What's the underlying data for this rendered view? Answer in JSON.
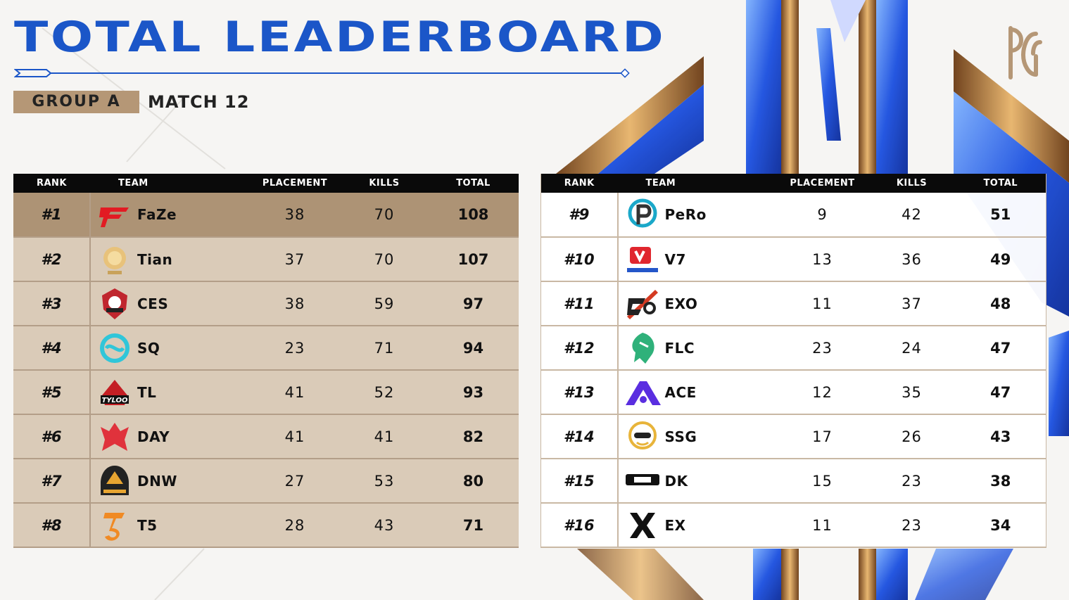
{
  "header": {
    "title": "TOTAL LEADERBOARD",
    "group": "GROUP A",
    "match": "MATCH 12"
  },
  "columns": {
    "rank": "RANK",
    "team": "TEAM",
    "placement": "PLACEMENT",
    "kills": "KILLS",
    "total": "TOTAL"
  },
  "colors": {
    "title_blue": "#1b56c8",
    "badge_tan": "#b59776",
    "row_tan": "#dacbb8",
    "first_row": "#ad9375",
    "header_black": "#0a0a0a"
  },
  "left_table": [
    {
      "rank": "#1",
      "team": "FaZe",
      "logo": "faze-logo-icon",
      "placement": "38",
      "kills": "70",
      "total": "108"
    },
    {
      "rank": "#2",
      "team": "Tian",
      "logo": "tian-logo-icon",
      "placement": "37",
      "kills": "70",
      "total": "107"
    },
    {
      "rank": "#3",
      "team": "CES",
      "logo": "ces-logo-icon",
      "placement": "38",
      "kills": "59",
      "total": "97"
    },
    {
      "rank": "#4",
      "team": "SQ",
      "logo": "sq-logo-icon",
      "placement": "23",
      "kills": "71",
      "total": "94"
    },
    {
      "rank": "#5",
      "team": "TL",
      "logo": "tl-logo-icon",
      "placement": "41",
      "kills": "52",
      "total": "93"
    },
    {
      "rank": "#6",
      "team": "DAY",
      "logo": "day-logo-icon",
      "placement": "41",
      "kills": "41",
      "total": "82"
    },
    {
      "rank": "#7",
      "team": "DNW",
      "logo": "dnw-logo-icon",
      "placement": "27",
      "kills": "53",
      "total": "80"
    },
    {
      "rank": "#8",
      "team": "T5",
      "logo": "t5-logo-icon",
      "placement": "28",
      "kills": "43",
      "total": "71"
    }
  ],
  "right_table": [
    {
      "rank": "#9",
      "team": "PeRo",
      "logo": "pero-logo-icon",
      "placement": "9",
      "kills": "42",
      "total": "51"
    },
    {
      "rank": "#10",
      "team": "V7",
      "logo": "v7-logo-icon",
      "placement": "13",
      "kills": "36",
      "total": "49"
    },
    {
      "rank": "#11",
      "team": "EXO",
      "logo": "exo-logo-icon",
      "placement": "11",
      "kills": "37",
      "total": "48"
    },
    {
      "rank": "#12",
      "team": "FLC",
      "logo": "flc-logo-icon",
      "placement": "23",
      "kills": "24",
      "total": "47"
    },
    {
      "rank": "#13",
      "team": "ACE",
      "logo": "ace-logo-icon",
      "placement": "12",
      "kills": "35",
      "total": "47"
    },
    {
      "rank": "#14",
      "team": "SSG",
      "logo": "ssg-logo-icon",
      "placement": "17",
      "kills": "26",
      "total": "43"
    },
    {
      "rank": "#15",
      "team": "DK",
      "logo": "dk-logo-icon",
      "placement": "15",
      "kills": "23",
      "total": "38"
    },
    {
      "rank": "#16",
      "team": "EX",
      "logo": "ex-logo-icon",
      "placement": "11",
      "kills": "23",
      "total": "34"
    }
  ]
}
